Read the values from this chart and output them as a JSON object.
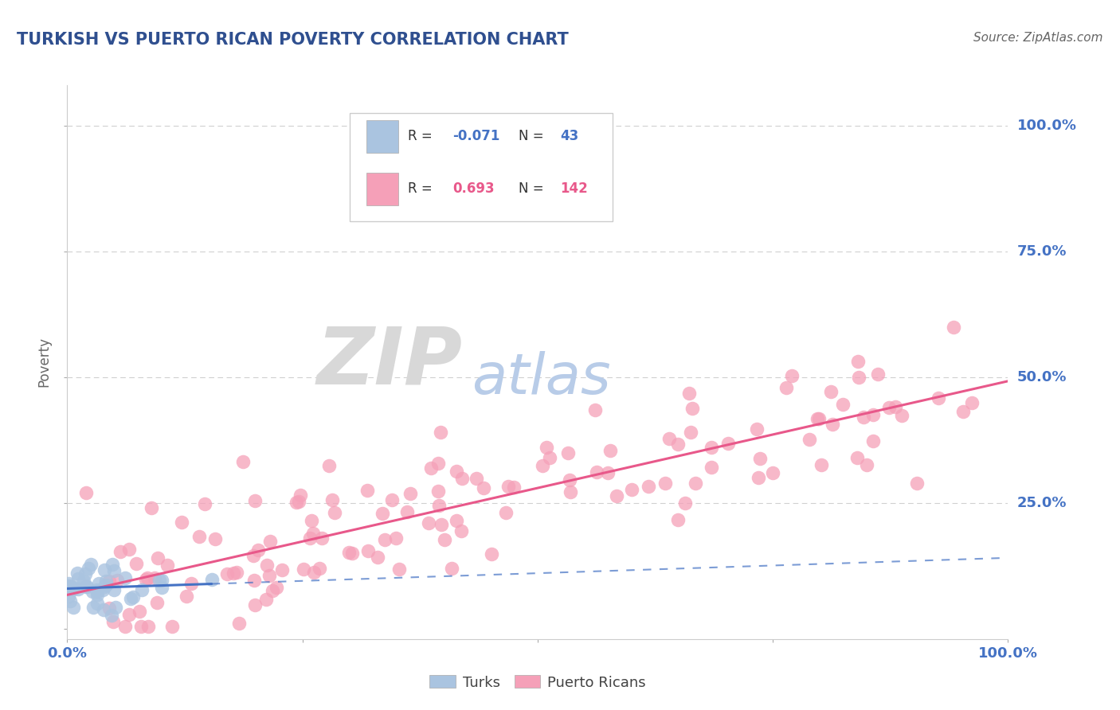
{
  "title": "TURKISH VS PUERTO RICAN POVERTY CORRELATION CHART",
  "source_text": "Source: ZipAtlas.com",
  "ylabel": "Poverty",
  "xlabel": "",
  "xlim": [
    0.0,
    1.0
  ],
  "ylim": [
    -0.02,
    1.08
  ],
  "turks_R": -0.071,
  "turks_N": 43,
  "pr_R": 0.693,
  "pr_N": 142,
  "turks_color": "#aac4e0",
  "pr_color": "#f5a0b8",
  "turks_line_color": "#4472c4",
  "pr_line_color": "#e8588a",
  "watermark_zip": "ZIP",
  "watermark_atlas": "atlas",
  "watermark_zip_color": "#d8d8d8",
  "watermark_atlas_color": "#b8cce8",
  "background_color": "#ffffff",
  "title_color": "#2f4f8f",
  "axis_label_color": "#4472c4",
  "source_color": "#666666",
  "ylabel_color": "#666666",
  "grid_color": "#d0d0d0",
  "legend_border_color": "#cccccc"
}
